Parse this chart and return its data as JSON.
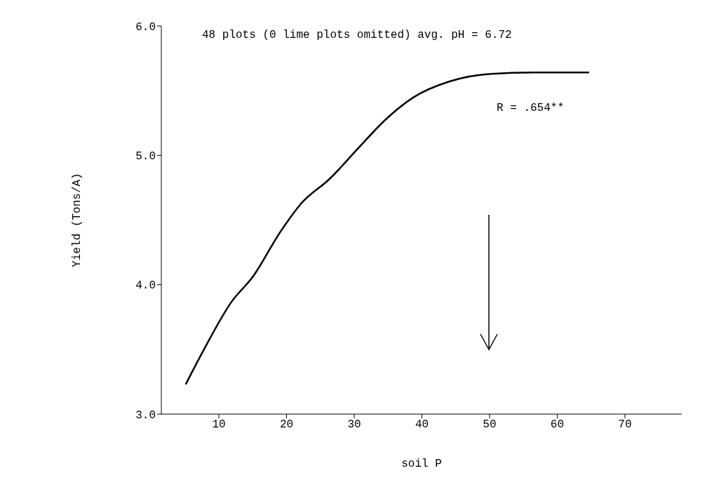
{
  "chart_data": {
    "type": "line",
    "xlabel": "soil P",
    "ylabel": "Yield (Tons/A)",
    "annotations": [
      "48 plots (0 lime plots omitted) avg. pH = 6.72",
      "R = .654**"
    ],
    "series": [
      {
        "color": "#000000",
        "x": [
          5.1,
          7.7,
          11.9,
          15,
          19.1,
          22.2,
          26.4,
          30.5,
          34.7,
          38.8,
          44,
          50.2,
          56.4,
          64.7
        ],
        "values": [
          3.23,
          3.49,
          3.87,
          4.06,
          4.41,
          4.63,
          4.82,
          5.05,
          5.28,
          5.45,
          5.57,
          5.63,
          5.64,
          5.64
        ]
      }
    ],
    "xlim": [
      1.5,
      78.4
    ],
    "xticks": [
      10,
      20,
      30,
      40,
      50,
      60,
      70
    ],
    "ylim": [
      3,
      6
    ],
    "yticks": [
      {
        "value": 3,
        "label": "3.0"
      },
      {
        "value": 4,
        "label": "4.0"
      },
      {
        "value": 5,
        "label": "5.0"
      },
      {
        "value": 6,
        "label": "6.0"
      }
    ],
    "grid": false,
    "legend": false,
    "marker": "none",
    "line_style": "solid"
  }
}
